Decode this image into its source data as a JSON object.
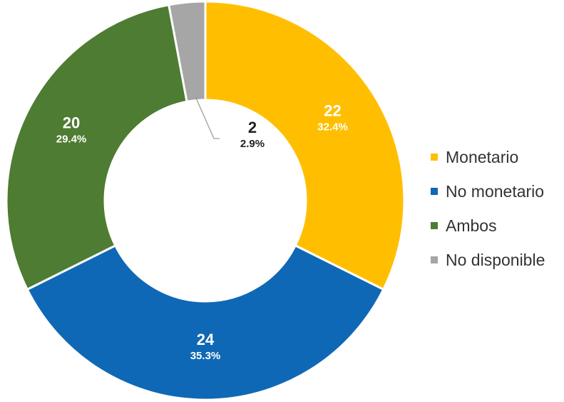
{
  "chart_data": {
    "type": "pie",
    "variant": "donut",
    "title": "",
    "series": [
      {
        "name": "Monetario",
        "value": 22,
        "percent_label": "32.4%",
        "color": "#FFBF00"
      },
      {
        "name": "No monetario",
        "value": 24,
        "percent_label": "35.3%",
        "color": "#0F68B5"
      },
      {
        "name": "Ambos",
        "value": 20,
        "percent_label": "29.4%",
        "color": "#4E7C32"
      },
      {
        "name": "No disponible",
        "value": 2,
        "percent_label": "2.9%",
        "color": "#A6A6A6"
      }
    ],
    "legend_position": "right",
    "label_colors": {
      "inside": "#FFFFFF",
      "outside": "#222222"
    }
  }
}
